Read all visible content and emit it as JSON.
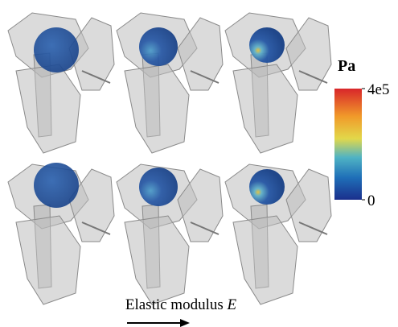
{
  "colorbar": {
    "unit": "Pa",
    "lim": [
      0,
      400000
    ],
    "ticks": [
      {
        "value": 400000,
        "label": "4e5"
      },
      0
    ]
  },
  "caption": {
    "text": "Elastic modulus",
    "symbol": "E"
  }
}
